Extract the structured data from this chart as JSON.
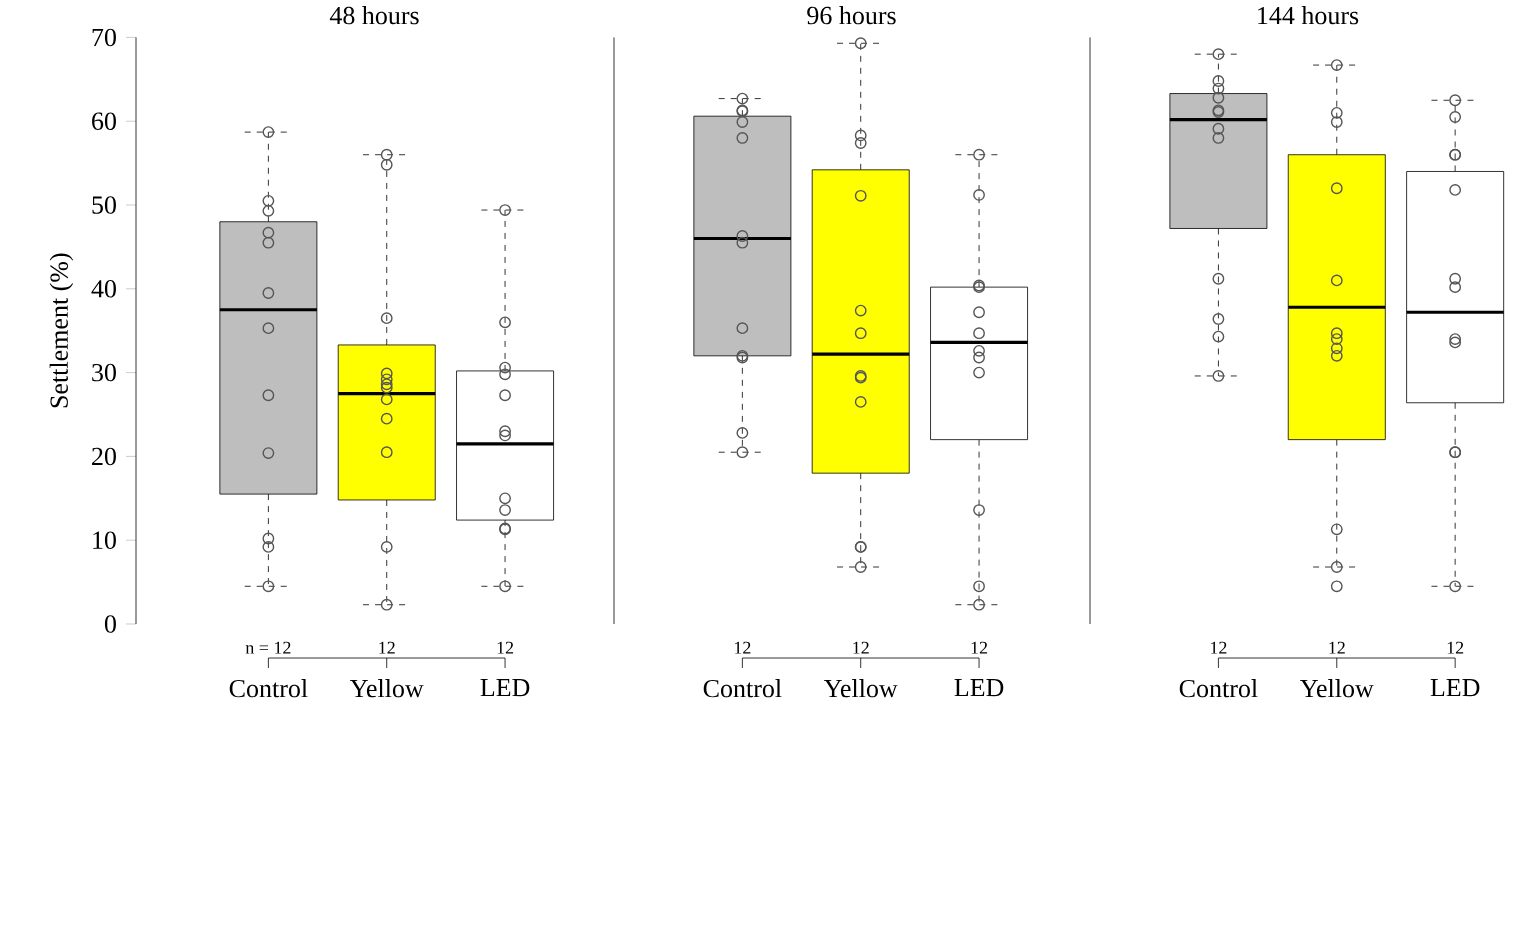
{
  "chart_data": [
    {
      "type": "box",
      "title": "48 hours",
      "ylabel": "Settlement (%)",
      "categories": [
        "Control",
        "Yellow",
        "LED"
      ],
      "colors": [
        "#bebebe",
        "#ffff00",
        "#ffffff"
      ],
      "ylim": [
        0,
        70
      ],
      "yticks": [
        0,
        10,
        20,
        30,
        40,
        50,
        60,
        70
      ],
      "boxes": [
        {
          "low": 4.5,
          "q1": 15.5,
          "median": 37.5,
          "q3": 48,
          "high": 58.7
        },
        {
          "low": 2.3,
          "q1": 14.8,
          "median": 27.5,
          "q3": 33.3,
          "high": 56
        },
        {
          "low": 4.5,
          "q1": 12.4,
          "median": 21.5,
          "q3": 30.2,
          "high": 49.4
        }
      ],
      "series": [
        {
          "type": "scatter",
          "marker": "circle",
          "color": "#555555",
          "x": [
            "Control",
            "Control",
            "Control",
            "Control",
            "Control",
            "Control",
            "Control",
            "Control",
            "Control",
            "Control",
            "Control",
            "Control",
            "Yellow",
            "Yellow",
            "Yellow",
            "Yellow",
            "Yellow",
            "Yellow",
            "Yellow",
            "Yellow",
            "Yellow",
            "Yellow",
            "Yellow",
            "Yellow",
            "LED",
            "LED",
            "LED",
            "LED",
            "LED",
            "LED",
            "LED",
            "LED",
            "LED",
            "LED",
            "LED",
            "LED"
          ],
          "values": [
            58.7,
            50.5,
            49.3,
            46.7,
            45.5,
            39.5,
            35.3,
            27.3,
            20.4,
            10.2,
            9.2,
            4.5,
            56,
            54.8,
            36.5,
            29.9,
            29.2,
            28.6,
            28.2,
            26.8,
            24.5,
            20.5,
            9.2,
            2.3,
            49.4,
            36,
            30.6,
            29.8,
            27.3,
            23,
            22.5,
            15,
            13.6,
            11.4,
            11.3,
            4.5
          ]
        }
      ],
      "annotations": [
        "n = 12",
        "12",
        "12"
      ]
    },
    {
      "type": "box",
      "title": "96 hours",
      "categories": [
        "Control",
        "Yellow",
        "LED"
      ],
      "colors": [
        "#bebebe",
        "#ffff00",
        "#ffffff"
      ],
      "ylim": [
        0,
        70
      ],
      "tick_labels": "x",
      "boxes": [
        {
          "low": 20.5,
          "q1": 32,
          "median": 46,
          "q3": 60.6,
          "high": 62.7
        },
        {
          "low": 6.8,
          "q1": 18,
          "median": 32.2,
          "q3": 54.2,
          "high": 69.3
        },
        {
          "low": 2.3,
          "q1": 22,
          "median": 33.6,
          "q3": 40.2,
          "high": 56
        }
      ],
      "series": [
        {
          "type": "scatter",
          "marker": "circle",
          "color": "#555555",
          "x": [
            "Control",
            "Control",
            "Control",
            "Control",
            "Control",
            "Control",
            "Control",
            "Control",
            "Control",
            "Control",
            "Control",
            "Control",
            "Yellow",
            "Yellow",
            "Yellow",
            "Yellow",
            "Yellow",
            "Yellow",
            "Yellow",
            "Yellow",
            "Yellow",
            "Yellow",
            "Yellow",
            "Yellow",
            "LED",
            "LED",
            "LED",
            "LED",
            "LED",
            "LED",
            "LED",
            "LED",
            "LED",
            "LED",
            "LED",
            "LED"
          ],
          "values": [
            62.7,
            61.3,
            61.2,
            59.9,
            58,
            46.3,
            45.5,
            35.3,
            32,
            31.8,
            22.8,
            20.5,
            69.3,
            58.3,
            57.4,
            51.1,
            37.4,
            34.7,
            29.6,
            29.4,
            26.5,
            9.2,
            9.2,
            6.8,
            56,
            51.2,
            40.4,
            40.2,
            37.2,
            34.7,
            32.6,
            31.8,
            30,
            13.6,
            4.5,
            2.3
          ]
        }
      ],
      "annotations": [
        "12",
        "12",
        "12"
      ]
    },
    {
      "type": "box",
      "title": "144 hours",
      "categories": [
        "Control",
        "Yellow",
        "LED"
      ],
      "colors": [
        "#bebebe",
        "#ffff00",
        "#ffffff"
      ],
      "ylim": [
        0,
        70
      ],
      "tick_labels": "x",
      "boxes": [
        {
          "low": 29.6,
          "q1": 47.2,
          "median": 60.2,
          "q3": 63.3,
          "high": 68
        },
        {
          "low": 6.8,
          "q1": 22,
          "median": 37.8,
          "q3": 56,
          "high": 66.7
        },
        {
          "low": 4.5,
          "q1": 26.4,
          "median": 37.2,
          "q3": 54,
          "high": 62.5
        }
      ],
      "series": [
        {
          "type": "scatter",
          "marker": "circle",
          "color": "#555555",
          "x": [
            "Control",
            "Control",
            "Control",
            "Control",
            "Control",
            "Control",
            "Control",
            "Control",
            "Control",
            "Control",
            "Control",
            "Control",
            "Yellow",
            "Yellow",
            "Yellow",
            "Yellow",
            "Yellow",
            "Yellow",
            "Yellow",
            "Yellow",
            "Yellow",
            "Yellow",
            "Yellow",
            "Yellow",
            "LED",
            "LED",
            "LED",
            "LED",
            "LED",
            "LED",
            "LED",
            "LED",
            "LED",
            "LED",
            "LED",
            "LED"
          ],
          "values": [
            68,
            64.8,
            63.9,
            62.8,
            61.3,
            61.1,
            59.1,
            58,
            41.2,
            36.4,
            34.3,
            29.6,
            66.7,
            61,
            59.9,
            52,
            41,
            34.7,
            34,
            32.9,
            32,
            11.3,
            6.8,
            4.5,
            62.5,
            60.5,
            56,
            56,
            51.8,
            41.2,
            40.2,
            34,
            33.6,
            20.5,
            20.5,
            4.5
          ]
        }
      ],
      "annotations": [
        "12",
        "12",
        "12"
      ]
    }
  ]
}
